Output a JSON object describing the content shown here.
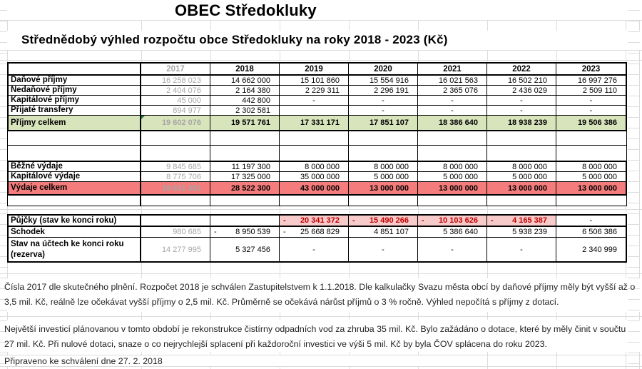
{
  "title": "OBEC Středokluky",
  "subtitle": "Střednědobý výhled rozpočtu obce Středokluky na roky 2018 - 2023 (Kč)",
  "colors": {
    "income_total_bg": "#D8E4BC",
    "expense_total_bg": "#F47C7C",
    "loan_cell_bg": "#F8CBCB",
    "loan_text": "#C00000",
    "year_2017_text": "#A6A6A6",
    "comment_triangle": "#217346"
  },
  "table": {
    "years": [
      "2017",
      "2018",
      "2019",
      "2020",
      "2021",
      "2022",
      "2023"
    ],
    "blocks": [
      {
        "rows": [
          {
            "kind": "header",
            "label": "",
            "cells": [
              {
                "t": "2017",
                "k": "gy"
              },
              {
                "t": "2018",
                "k": "y"
              },
              {
                "t": "2019",
                "k": "y"
              },
              {
                "t": "2020",
                "k": "y"
              },
              {
                "t": "2021",
                "k": "y"
              },
              {
                "t": "2022",
                "k": "y"
              },
              {
                "t": "2023",
                "k": "y"
              }
            ]
          },
          {
            "kind": "data",
            "label": "Daňové příjmy",
            "cells": [
              {
                "t": "16 258 023",
                "k": "g"
              },
              {
                "t": "14 662 000",
                "k": "v"
              },
              {
                "t": "15 101 860",
                "k": "v"
              },
              {
                "t": "15 554 916",
                "k": "v"
              },
              {
                "t": "16 021 563",
                "k": "v"
              },
              {
                "t": "16 502 210",
                "k": "v"
              },
              {
                "t": "16 997 276",
                "k": "v"
              }
            ]
          },
          {
            "kind": "data",
            "label": "Nedaňové příjmy",
            "cells": [
              {
                "t": "2 404 076",
                "k": "g"
              },
              {
                "t": "2 164 380",
                "k": "v"
              },
              {
                "t": "2 229 311",
                "k": "v"
              },
              {
                "t": "2 296 191",
                "k": "v"
              },
              {
                "t": "2 365 076",
                "k": "v"
              },
              {
                "t": "2 436 029",
                "k": "v"
              },
              {
                "t": "2 509 110",
                "k": "v"
              }
            ]
          },
          {
            "kind": "data",
            "label": "Kapitálové příjmy",
            "cells": [
              {
                "t": "45 000",
                "k": "g"
              },
              {
                "t": "442 800",
                "k": "v"
              },
              {
                "t": "-",
                "k": "d"
              },
              {
                "t": "-",
                "k": "d"
              },
              {
                "t": "-",
                "k": "d"
              },
              {
                "t": "-",
                "k": "d"
              },
              {
                "t": "-",
                "k": "d"
              }
            ]
          },
          {
            "kind": "data",
            "label": "Přijaté transfery",
            "cells": [
              {
                "t": "894 977",
                "k": "g"
              },
              {
                "t": "2 302 581",
                "k": "v"
              },
              {
                "t": "",
                "k": "e"
              },
              {
                "t": "-",
                "k": "d"
              },
              {
                "t": "-",
                "k": "d"
              },
              {
                "t": "-",
                "k": "d"
              },
              {
                "t": "-",
                "k": "d"
              }
            ]
          },
          {
            "kind": "green",
            "label": "Příjmy celkem",
            "cells": [
              {
                "t": "19 602 076",
                "k": "g",
                "tri": true
              },
              {
                "t": "19 571 761",
                "k": "v"
              },
              {
                "t": "17 331 171",
                "k": "v"
              },
              {
                "t": "17 851 107",
                "k": "v"
              },
              {
                "t": "18 386 640",
                "k": "v"
              },
              {
                "t": "18 938 239",
                "k": "v"
              },
              {
                "t": "19 506 386",
                "k": "v"
              }
            ]
          }
        ]
      },
      {
        "rows": [
          {
            "kind": "sp1",
            "label": "",
            "cells": [
              {
                "t": "",
                "k": "e"
              },
              {
                "t": "",
                "k": "e"
              },
              {
                "t": "",
                "k": "e"
              },
              {
                "t": "",
                "k": "e"
              },
              {
                "t": "",
                "k": "e"
              },
              {
                "t": "",
                "k": "e"
              },
              {
                "t": "",
                "k": "e"
              }
            ]
          },
          {
            "kind": "sp2",
            "label": "",
            "cells": [
              {
                "t": "",
                "k": "e"
              },
              {
                "t": "",
                "k": "e"
              },
              {
                "t": "",
                "k": "e"
              },
              {
                "t": "",
                "k": "e"
              },
              {
                "t": "",
                "k": "e"
              },
              {
                "t": "",
                "k": "e"
              },
              {
                "t": "",
                "k": "e"
              }
            ]
          }
        ]
      },
      {
        "rows": [
          {
            "kind": "data",
            "label": "Běžné výdaje",
            "cells": [
              {
                "t": "9 845 685",
                "k": "g"
              },
              {
                "t": "11 197 300",
                "k": "v"
              },
              {
                "t": "8 000 000",
                "k": "v"
              },
              {
                "t": "8 000 000",
                "k": "v"
              },
              {
                "t": "8 000 000",
                "k": "v"
              },
              {
                "t": "8 000 000",
                "k": "v"
              },
              {
                "t": "8 000 000",
                "k": "v"
              }
            ]
          },
          {
            "kind": "data",
            "label": "Kapitálové výdaje",
            "cells": [
              {
                "t": "8 775 706",
                "k": "g"
              },
              {
                "t": "17 325 000",
                "k": "v"
              },
              {
                "t": "35 000 000",
                "k": "v"
              },
              {
                "t": "5 000 000",
                "k": "v"
              },
              {
                "t": "5 000 000",
                "k": "v"
              },
              {
                "t": "5 000 000",
                "k": "v"
              },
              {
                "t": "5 000 000",
                "k": "v"
              }
            ]
          },
          {
            "kind": "red",
            "label": "Výdaje celkem",
            "cells": [
              {
                "t": "18 621 391",
                "k": "g"
              },
              {
                "t": "28 522 300",
                "k": "v"
              },
              {
                "t": "43 000 000",
                "k": "v"
              },
              {
                "t": "13 000 000",
                "k": "v"
              },
              {
                "t": "13 000 000",
                "k": "v"
              },
              {
                "t": "13 000 000",
                "k": "v"
              },
              {
                "t": "13 000 000",
                "k": "v"
              }
            ]
          }
        ]
      },
      {
        "rows": [
          {
            "kind": "sp",
            "label": "",
            "cells": [
              {
                "t": "",
                "k": "e"
              },
              {
                "t": "",
                "k": "e"
              },
              {
                "t": "",
                "k": "e"
              },
              {
                "t": "",
                "k": "e"
              },
              {
                "t": "",
                "k": "e"
              },
              {
                "t": "",
                "k": "e"
              },
              {
                "t": "",
                "k": "e"
              }
            ]
          }
        ]
      },
      {
        "rows": [
          {
            "kind": "loan",
            "label": "Půjčky (stav ke konci roku)",
            "cells": [
              {
                "t": "",
                "k": "e"
              },
              {
                "t": "",
                "k": "e"
              },
              {
                "t": "20 341 372",
                "k": "pm"
              },
              {
                "t": "15 490 266",
                "k": "pm"
              },
              {
                "t": "10 103 626",
                "k": "pm"
              },
              {
                "t": "4 165 387",
                "k": "pm"
              },
              {
                "t": "-",
                "k": "d"
              }
            ]
          }
        ]
      },
      {
        "rows": [
          {
            "kind": "schodek",
            "label": "Schodek",
            "cells": [
              {
                "t": "980 685",
                "k": "g"
              },
              {
                "t": "8 950 539",
                "k": "m"
              },
              {
                "t": "25 668 829",
                "k": "m"
              },
              {
                "t": "4 851 107",
                "k": "v"
              },
              {
                "t": "5 386 640",
                "k": "v"
              },
              {
                "t": "5 938 239",
                "k": "v"
              },
              {
                "t": "6 506 386",
                "k": "v"
              }
            ]
          },
          {
            "kind": "stav",
            "label": "Stav na účtech ke konci roku (rezerva)",
            "cells": [
              {
                "t": "14 277 995",
                "k": "g"
              },
              {
                "t": "5 327 456",
                "k": "v"
              },
              {
                "t": "-",
                "k": "d"
              },
              {
                "t": "-",
                "k": "d"
              },
              {
                "t": "-",
                "k": "d"
              },
              {
                "t": "-",
                "k": "d"
              },
              {
                "t": "2 340 999",
                "k": "v"
              }
            ]
          }
        ]
      }
    ]
  },
  "notes": {
    "para1": "Čísla 2017 dle skutečného plnění. Rozpočet 2018 je schválen Zastupitelstvem k 1.1.2018. Dle kalkulačky Svazu města obcí by daňové příjmy měly být vyšší až o 3,5 mil. Kč, reálně lze očekávat vyšší příjmy o 2,5 mil. Kč. Průměrně se očekává nárůst příjmů o 3 % ročně. Výhled nepočítá s příjmy z dotací.",
    "para2": "Největší investicí plánovanou v tomto období je rekonstrukce čistírny odpadních vod za zhruba 35 mil. Kč. Bylo zažádáno o dotace, které by měly činit v součtu 27 mil. Kč. Při nulové dotaci, snaze o co nejrychlejší splacení při každoroční investici ve výši 5 mil. Kč by byla ČOV splácena do roku 2023.",
    "approved": "Připraveno ke schválení dne 27. 2. 2018"
  }
}
